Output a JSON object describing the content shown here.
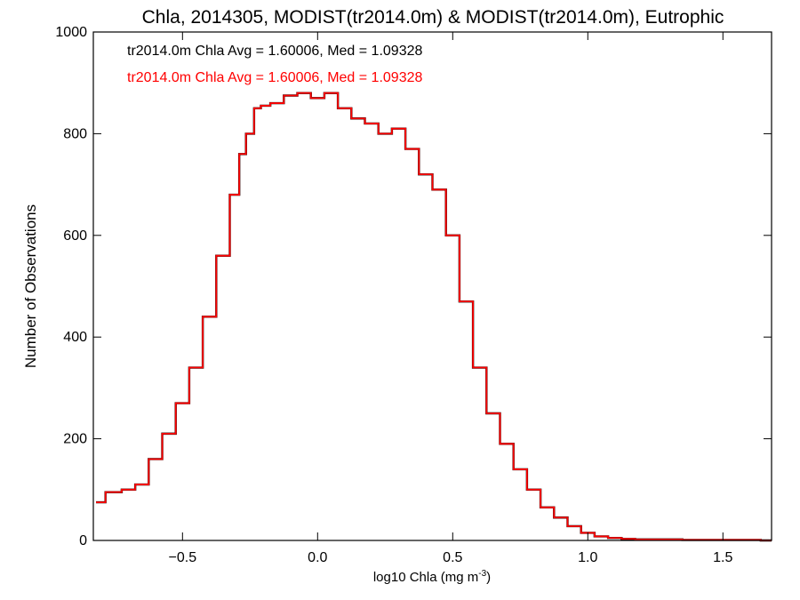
{
  "chart_data": {
    "type": "histogram",
    "title": "Chla, 2014305, MODIST(tr2014.0m) & MODIST(tr2014.0m), Eutrophic",
    "xlabel": "log10 Chla (mg m",
    "xlabel_sup": "-3",
    "xlabel_close": ")",
    "ylabel": "Number of Observations",
    "xlim": [
      -0.83,
      1.68
    ],
    "ylim": [
      0,
      1000
    ],
    "xticks": [
      -0.5,
      0.0,
      0.5,
      1.0,
      1.5
    ],
    "xtick_labels": [
      "−0.5",
      "0.0",
      "0.5",
      "1.0",
      "1.5"
    ],
    "yticks": [
      0,
      200,
      400,
      600,
      800,
      1000
    ],
    "ytick_labels": [
      "0",
      "200",
      "400",
      "600",
      "800",
      "1000"
    ],
    "grid": false,
    "annotations": [
      {
        "text": "tr2014.0m Chla Avg = 1.60006, Med = 1.09328",
        "color": "#000000"
      },
      {
        "text": "tr2014.0m Chla Avg = 1.60006, Med = 1.09328",
        "color": "#ff0000"
      }
    ],
    "series": [
      {
        "name": "tr2014.0m",
        "color": "#000000",
        "x": [
          -0.82,
          -0.75,
          -0.7,
          -0.65,
          -0.6,
          -0.55,
          -0.5,
          -0.45,
          -0.4,
          -0.35,
          -0.3,
          -0.28,
          -0.25,
          -0.22,
          -0.2,
          -0.15,
          -0.1,
          -0.05,
          0.0,
          0.05,
          0.1,
          0.15,
          0.2,
          0.25,
          0.3,
          0.35,
          0.4,
          0.45,
          0.5,
          0.55,
          0.6,
          0.65,
          0.7,
          0.75,
          0.8,
          0.85,
          0.9,
          0.95,
          1.0,
          1.05,
          1.1,
          1.15,
          1.2,
          1.3,
          1.4,
          1.5,
          1.6,
          1.68
        ],
        "y": [
          75,
          95,
          100,
          110,
          160,
          210,
          270,
          340,
          440,
          560,
          680,
          760,
          800,
          850,
          855,
          860,
          875,
          880,
          870,
          880,
          850,
          830,
          820,
          800,
          810,
          770,
          720,
          690,
          600,
          470,
          340,
          250,
          190,
          140,
          100,
          65,
          45,
          28,
          15,
          8,
          5,
          3,
          2,
          2,
          1,
          1,
          1,
          0
        ]
      },
      {
        "name": "tr2014.0m",
        "color": "#ff0000",
        "x": [
          -0.82,
          -0.75,
          -0.7,
          -0.65,
          -0.6,
          -0.55,
          -0.5,
          -0.45,
          -0.4,
          -0.35,
          -0.3,
          -0.28,
          -0.25,
          -0.22,
          -0.2,
          -0.15,
          -0.1,
          -0.05,
          0.0,
          0.05,
          0.1,
          0.15,
          0.2,
          0.25,
          0.3,
          0.35,
          0.4,
          0.45,
          0.5,
          0.55,
          0.6,
          0.65,
          0.7,
          0.75,
          0.8,
          0.85,
          0.9,
          0.95,
          1.0,
          1.05,
          1.1,
          1.15,
          1.2,
          1.3,
          1.4,
          1.5,
          1.6,
          1.68
        ],
        "y": [
          75,
          95,
          100,
          110,
          160,
          210,
          270,
          340,
          440,
          560,
          680,
          760,
          800,
          850,
          855,
          860,
          875,
          880,
          870,
          880,
          850,
          830,
          820,
          800,
          810,
          770,
          720,
          690,
          600,
          470,
          340,
          250,
          190,
          140,
          100,
          65,
          45,
          28,
          15,
          8,
          5,
          3,
          2,
          2,
          1,
          1,
          1,
          0
        ]
      }
    ]
  }
}
